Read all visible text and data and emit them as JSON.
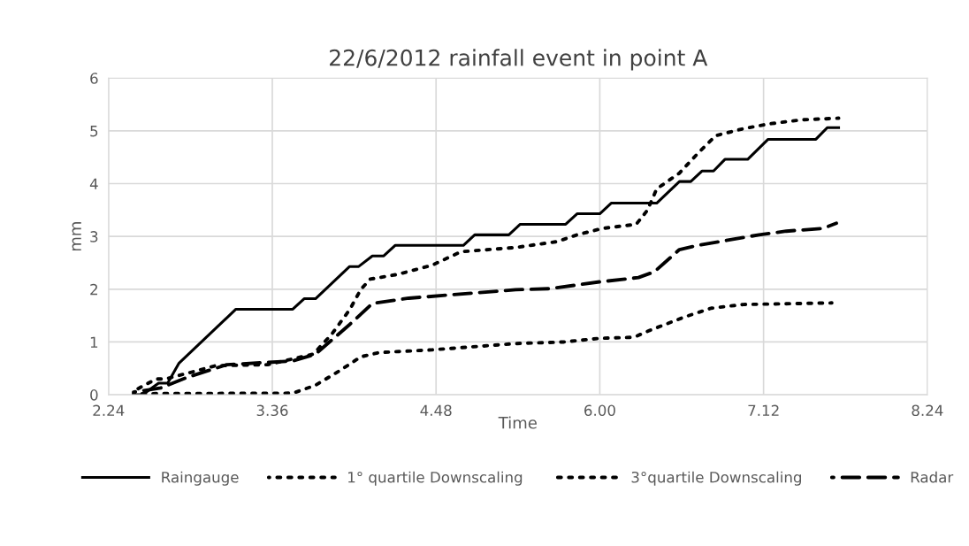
{
  "chart_data": {
    "type": "line",
    "title": "22/6/2012 rainfall event in point A",
    "xlabel": "Time",
    "ylabel": "mm",
    "xlim": [
      "2012-06-22T02:24",
      "2012-06-22T08:24"
    ],
    "xticks": [
      {
        "value": "2012-06-22T02:24",
        "label": "2.24"
      },
      {
        "value": "2012-06-22T03:36",
        "label": "3.36"
      },
      {
        "value": "2012-06-22T04:48",
        "label": "4.48"
      },
      {
        "value": "2012-06-22T06:00",
        "label": "6.00"
      },
      {
        "value": "2012-06-22T07:12",
        "label": "7.12"
      },
      {
        "value": "2012-06-22T08:24",
        "label": "8.24"
      }
    ],
    "ylim": [
      0,
      6
    ],
    "yticks": [
      0,
      1,
      2,
      3,
      4,
      5,
      6
    ],
    "grid": true,
    "legend": "bottom",
    "marker": "none",
    "series": [
      {
        "name": "Raingauge",
        "color": "#000000",
        "line_style": "solid",
        "x": [
          "2012-06-22T02:35",
          "2012-06-22T02:39",
          "2012-06-22T02:46",
          "2012-06-22T02:50",
          "2012-06-22T02:55",
          "2012-06-22T03:20",
          "2012-06-22T03:45",
          "2012-06-22T03:50",
          "2012-06-22T03:55",
          "2012-06-22T04:10",
          "2012-06-22T04:14",
          "2012-06-22T04:20",
          "2012-06-22T04:25",
          "2012-06-22T04:30",
          "2012-06-22T05:00",
          "2012-06-22T05:05",
          "2012-06-22T05:20",
          "2012-06-22T05:25",
          "2012-06-22T05:45",
          "2012-06-22T05:50",
          "2012-06-22T06:00",
          "2012-06-22T06:05",
          "2012-06-22T06:25",
          "2012-06-22T06:35",
          "2012-06-22T06:40",
          "2012-06-22T06:45",
          "2012-06-22T06:50",
          "2012-06-22T06:55",
          "2012-06-22T07:05",
          "2012-06-22T07:14",
          "2012-06-22T07:35",
          "2012-06-22T07:40",
          "2012-06-22T07:45"
        ],
        "values": [
          0,
          0,
          0.22,
          0.22,
          0.6,
          1.62,
          1.62,
          1.82,
          1.82,
          2.43,
          2.43,
          2.63,
          2.63,
          2.83,
          2.83,
          3.03,
          3.03,
          3.23,
          3.23,
          3.43,
          3.43,
          3.63,
          3.63,
          4.04,
          4.04,
          4.24,
          4.24,
          4.46,
          4.46,
          4.84,
          4.84,
          5.06,
          5.06
        ]
      },
      {
        "name": "1° quartile Downscaling",
        "color": "#000000",
        "line_style": "dotted",
        "x": [
          "2012-06-22T02:35",
          "2012-06-22T03:45",
          "2012-06-22T03:55",
          "2012-06-22T04:05",
          "2012-06-22T04:15",
          "2012-06-22T04:23",
          "2012-06-22T04:46",
          "2012-06-22T05:23",
          "2012-06-22T05:44",
          "2012-06-22T06:00",
          "2012-06-22T06:15",
          "2012-06-22T06:22",
          "2012-06-22T06:37",
          "2012-06-22T06:49",
          "2012-06-22T07:03",
          "2012-06-22T07:42"
        ],
        "values": [
          0.02,
          0.03,
          0.18,
          0.44,
          0.72,
          0.8,
          0.85,
          0.97,
          1.0,
          1.07,
          1.09,
          1.22,
          1.47,
          1.64,
          1.71,
          1.74
        ]
      },
      {
        "name": "3°quartile Downscaling",
        "color": "#000000",
        "line_style": "dotted",
        "x": [
          "2012-06-22T02:35",
          "2012-06-22T02:45",
          "2012-06-22T02:49",
          "2012-06-22T02:58",
          "2012-06-22T03:11",
          "2012-06-22T03:34",
          "2012-06-22T03:54",
          "2012-06-22T04:02",
          "2012-06-22T04:10",
          "2012-06-22T04:15",
          "2012-06-22T04:19",
          "2012-06-22T04:31",
          "2012-06-22T04:46",
          "2012-06-22T04:59",
          "2012-06-22T05:23",
          "2012-06-22T05:41",
          "2012-06-22T05:50",
          "2012-06-22T06:01",
          "2012-06-22T06:16",
          "2012-06-22T06:21",
          "2012-06-22T06:25",
          "2012-06-22T06:35",
          "2012-06-22T06:43",
          "2012-06-22T06:51",
          "2012-06-22T07:03",
          "2012-06-22T07:14",
          "2012-06-22T07:29",
          "2012-06-22T07:45"
        ],
        "values": [
          0.07,
          0.3,
          0.3,
          0.4,
          0.55,
          0.57,
          0.77,
          1.14,
          1.61,
          2.0,
          2.19,
          2.28,
          2.45,
          2.71,
          2.79,
          2.9,
          3.03,
          3.15,
          3.23,
          3.5,
          3.9,
          4.2,
          4.57,
          4.91,
          5.04,
          5.13,
          5.21,
          5.24
        ]
      },
      {
        "name": "Radar",
        "color": "#000000",
        "line_style": "dashed",
        "x": [
          "2012-06-22T02:35",
          "2012-06-22T02:47",
          "2012-06-22T02:58",
          "2012-06-22T03:16",
          "2012-06-22T03:45",
          "2012-06-22T03:55",
          "2012-06-22T04:10",
          "2012-06-22T04:20",
          "2012-06-22T04:36",
          "2012-06-22T05:23",
          "2012-06-22T05:38",
          "2012-06-22T06:00",
          "2012-06-22T06:17",
          "2012-06-22T06:24",
          "2012-06-22T06:35",
          "2012-06-22T06:43",
          "2012-06-22T07:10",
          "2012-06-22T07:22",
          "2012-06-22T07:38",
          "2012-06-22T07:44"
        ],
        "values": [
          0.05,
          0.13,
          0.32,
          0.57,
          0.64,
          0.77,
          1.33,
          1.73,
          1.83,
          1.99,
          2.01,
          2.14,
          2.22,
          2.33,
          2.75,
          2.83,
          3.03,
          3.1,
          3.15,
          3.25
        ]
      }
    ]
  }
}
